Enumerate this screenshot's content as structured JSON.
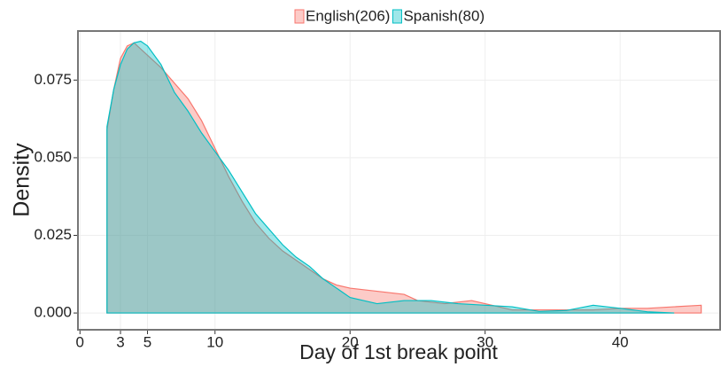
{
  "chart_data": {
    "type": "area",
    "xlabel": "Day of 1st break point",
    "ylabel": "Density",
    "xlim": [
      -0.15,
      47.4
    ],
    "ylim": [
      -0.0054,
      0.0908
    ],
    "xticks": [
      0,
      3,
      5,
      10,
      20,
      30,
      40
    ],
    "yticks": [
      {
        "value": 0,
        "label": "0.000"
      },
      0.025,
      {
        "value": 0.05,
        "label": "0.050"
      },
      0.075
    ],
    "grid": true,
    "legend": "top",
    "series": [
      {
        "name": "English(206)",
        "color": "#f8766d",
        "x": [
          2,
          2.5,
          3,
          3.5,
          4,
          5,
          6,
          7,
          8,
          9,
          10,
          11,
          12,
          13,
          14,
          15,
          16,
          17,
          18,
          19,
          20,
          22,
          24,
          25,
          27,
          29,
          30,
          32,
          34,
          36,
          38,
          40,
          42,
          44,
          46
        ],
        "values": [
          0.059,
          0.072,
          0.082,
          0.086,
          0.087,
          0.083,
          0.079,
          0.074,
          0.069,
          0.062,
          0.053,
          0.044,
          0.036,
          0.029,
          0.024,
          0.02,
          0.017,
          0.014,
          0.011,
          0.009,
          0.008,
          0.007,
          0.006,
          0.004,
          0.003,
          0.004,
          0.003,
          0.001,
          0.001,
          0.001,
          0.001,
          0.0015,
          0.0015,
          0.002,
          0.0025
        ]
      },
      {
        "name": "Spanish(80)",
        "color": "#00bfc4",
        "x": [
          2,
          2.5,
          3,
          3.5,
          4,
          4.5,
          5,
          6,
          7,
          8,
          9,
          10,
          11,
          12,
          13,
          14,
          15,
          16,
          17,
          18,
          19,
          20,
          22,
          24,
          26,
          28,
          30,
          32,
          34,
          36,
          38,
          40,
          42,
          44
        ],
        "values": [
          0.06,
          0.072,
          0.08,
          0.085,
          0.087,
          0.0875,
          0.086,
          0.08,
          0.071,
          0.065,
          0.058,
          0.052,
          0.046,
          0.039,
          0.032,
          0.027,
          0.022,
          0.018,
          0.015,
          0.011,
          0.008,
          0.005,
          0.003,
          0.004,
          0.004,
          0.003,
          0.0025,
          0.002,
          0.0005,
          0.0008,
          0.0025,
          0.0015,
          0.0004,
          0
        ]
      }
    ]
  }
}
